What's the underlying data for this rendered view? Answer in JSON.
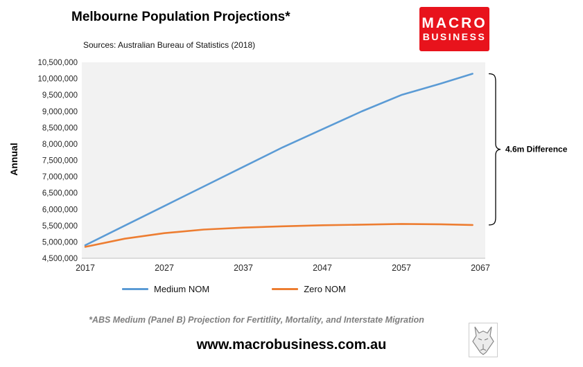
{
  "header": {
    "title": "Melbourne Population Projections*",
    "sources": "Sources: Australian Bureau of Statistics (2018)",
    "logo": {
      "line1": "MACRO",
      "line2": "BUSINESS",
      "bg_color": "#e8131c"
    }
  },
  "chart_data": {
    "type": "line",
    "title": "Melbourne Population Projections*",
    "xlabel": "",
    "ylabel": "Annual",
    "ylim": [
      4500000,
      10500000
    ],
    "ytick_step": 500000,
    "xlim": [
      2017,
      2067
    ],
    "xticks": [
      2017,
      2027,
      2037,
      2047,
      2057,
      2067
    ],
    "grid": false,
    "legend_position": "bottom",
    "plot_background": "#f2f2f2",
    "x": [
      2017,
      2022,
      2027,
      2032,
      2037,
      2042,
      2047,
      2052,
      2057,
      2062,
      2066
    ],
    "series": [
      {
        "name": "Medium NOM",
        "color": "#5B9BD5",
        "values": [
          4900000,
          5500000,
          6100000,
          6700000,
          7300000,
          7900000,
          8450000,
          9000000,
          9500000,
          9850000,
          10150000
        ]
      },
      {
        "name": "Zero NOM",
        "color": "#ED7D31",
        "values": [
          4850000,
          5100000,
          5270000,
          5380000,
          5440000,
          5480000,
          5510000,
          5530000,
          5550000,
          5540000,
          5520000
        ]
      }
    ],
    "annotation": "4.6m Difference"
  },
  "footer": {
    "note": "*ABS Medium (Panel B) Projection for Fertitlity, Mortality, and Interstate Migration",
    "website": "www.macrobusiness.com.au"
  }
}
